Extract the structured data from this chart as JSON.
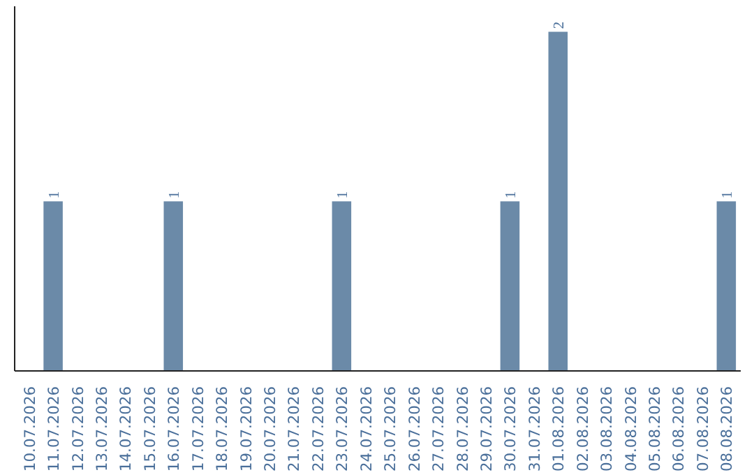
{
  "chart_data": {
    "type": "bar",
    "categories": [
      "10.07.2026",
      "11.07.2026",
      "12.07.2026",
      "13.07.2026",
      "14.07.2026",
      "15.07.2026",
      "16.07.2026",
      "17.07.2026",
      "18.07.2026",
      "19.07.2026",
      "20.07.2026",
      "21.07.2026",
      "22.07.2026",
      "23.07.2026",
      "24.07.2026",
      "25.07.2026",
      "26.07.2026",
      "27.07.2026",
      "28.07.2026",
      "29.07.2026",
      "30.07.2026",
      "31.07.2026",
      "01.08.2026",
      "02.08.2026",
      "03.08.2026",
      "04.08.2026",
      "05.08.2026",
      "06.08.2026",
      "07.08.2026",
      "08.08.2026"
    ],
    "values": [
      0,
      1,
      0,
      0,
      0,
      0,
      1,
      0,
      0,
      0,
      0,
      0,
      0,
      1,
      0,
      0,
      0,
      0,
      0,
      0,
      1,
      0,
      2,
      0,
      0,
      0,
      0,
      0,
      0,
      1
    ],
    "value_labels": [
      null,
      "1",
      null,
      null,
      null,
      null,
      "1",
      null,
      null,
      null,
      null,
      null,
      null,
      "1",
      null,
      null,
      null,
      null,
      null,
      null,
      "1",
      null,
      "2",
      null,
      null,
      null,
      null,
      null,
      null,
      "1"
    ],
    "color": "#6b8aa8",
    "grid": false,
    "tick_labels": "x"
  }
}
